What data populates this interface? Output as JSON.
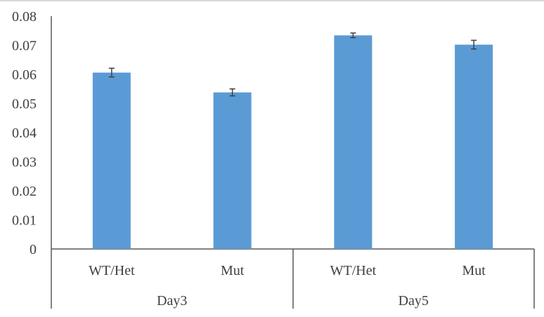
{
  "chart_data": {
    "type": "bar",
    "title": "",
    "xlabel": "",
    "ylabel": "",
    "ylim": [
      0,
      0.08
    ],
    "y_ticks": [
      "0",
      "0.01",
      "0.02",
      "0.03",
      "0.04",
      "0.05",
      "0.06",
      "0.07",
      "0.08"
    ],
    "groups": [
      "Day3",
      "Day5"
    ],
    "categories": [
      "WT/Het",
      "Mut",
      "WT/Het",
      "Mut"
    ],
    "category_group": [
      "Day3",
      "Day3",
      "Day5",
      "Day5"
    ],
    "values": [
      0.0606,
      0.0538,
      0.0734,
      0.0702
    ],
    "errors": [
      0.0015,
      0.0012,
      0.0008,
      0.0015
    ],
    "bar_color": "#5b9bd5",
    "errorbar_color": "#404040",
    "grid": false,
    "legend": "none"
  }
}
